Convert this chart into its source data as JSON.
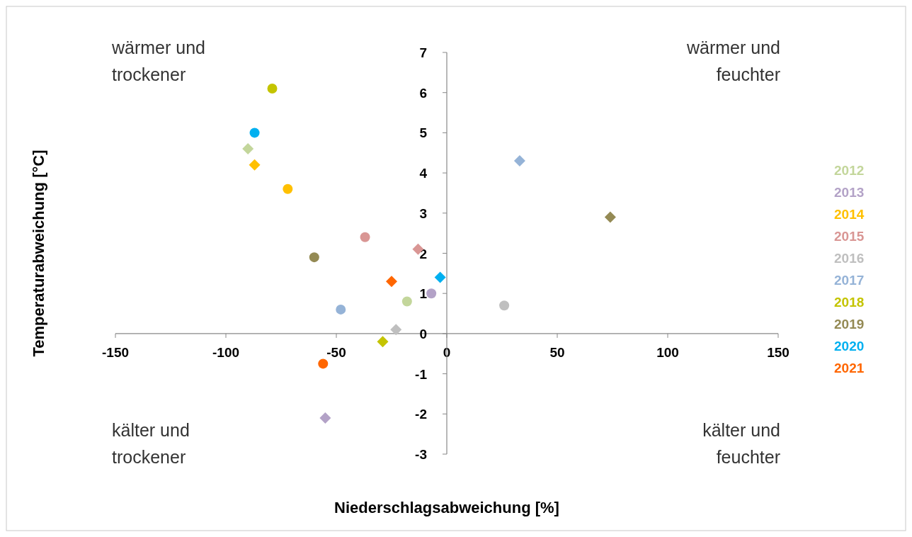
{
  "chart_data": {
    "type": "scatter",
    "xlabel": "Niederschlagsabweichung [%]",
    "ylabel": "Temperaturabweichung [°C]",
    "xlim": [
      -150,
      150
    ],
    "xticks": [
      -150,
      -100,
      -50,
      0,
      50,
      100,
      150
    ],
    "ylim": [
      -3,
      7
    ],
    "yticks": [
      -3,
      -2,
      -1,
      0,
      1,
      2,
      3,
      4,
      5,
      6,
      7
    ],
    "legend": "right",
    "grid": false,
    "annotations": [
      "wärmer und\ntrockener",
      "wärmer und\nfeuchter",
      "kälter und\ntrockener",
      "kälter und\nfeuchter"
    ],
    "series": [
      {
        "name": "2012",
        "color": "#c3d69b",
        "marker": "circle",
        "x": [
          -18
        ],
        "values": [
          0.8
        ]
      },
      {
        "name": "2013",
        "color": "#b3a2c7",
        "marker": "circle",
        "x": [
          -7
        ],
        "values": [
          1.0
        ]
      },
      {
        "name": "2014",
        "color": "#ffc000",
        "marker": "circle",
        "x": [
          -72
        ],
        "values": [
          3.6
        ]
      },
      {
        "name": "2015",
        "color": "#d99694",
        "marker": "circle",
        "x": [
          -37
        ],
        "values": [
          2.4
        ]
      },
      {
        "name": "2016",
        "color": "#bfbfbf",
        "marker": "circle",
        "x": [
          26
        ],
        "values": [
          0.7
        ]
      },
      {
        "name": "2017",
        "color": "#95b3d7",
        "marker": "circle",
        "x": [
          -48
        ],
        "values": [
          0.6
        ]
      },
      {
        "name": "2018",
        "color": "#c4c400",
        "marker": "circle",
        "x": [
          -79
        ],
        "values": [
          6.1
        ]
      },
      {
        "name": "2019",
        "color": "#948a54",
        "marker": "circle",
        "x": [
          -60
        ],
        "values": [
          1.9
        ]
      },
      {
        "name": "2020",
        "color": "#00b0f0",
        "marker": "circle",
        "x": [
          -87
        ],
        "values": [
          5.0
        ]
      },
      {
        "name": "2021",
        "color": "#ff6600",
        "marker": "circle",
        "x": [
          -56
        ],
        "values": [
          -0.75
        ]
      },
      {
        "color": "#c3d69b",
        "marker": "diamond",
        "x": [
          -90
        ],
        "values": [
          4.6
        ]
      },
      {
        "color": "#b3a2c7",
        "marker": "diamond",
        "x": [
          -55
        ],
        "values": [
          -2.1
        ]
      },
      {
        "color": "#ffc000",
        "marker": "diamond",
        "x": [
          -87
        ],
        "values": [
          4.2
        ]
      },
      {
        "color": "#d99694",
        "marker": "diamond",
        "x": [
          -13
        ],
        "values": [
          2.1
        ]
      },
      {
        "color": "#bfbfbf",
        "marker": "diamond",
        "x": [
          -23
        ],
        "values": [
          0.1
        ]
      },
      {
        "color": "#95b3d7",
        "marker": "diamond",
        "x": [
          33
        ],
        "values": [
          4.3
        ]
      },
      {
        "color": "#c4c400",
        "marker": "diamond",
        "x": [
          -29
        ],
        "values": [
          -0.2
        ]
      },
      {
        "color": "#948a54",
        "marker": "diamond",
        "x": [
          74
        ],
        "values": [
          2.9
        ]
      },
      {
        "color": "#00b0f0",
        "marker": "diamond",
        "x": [
          -3
        ],
        "values": [
          1.4
        ]
      },
      {
        "color": "#ff6600",
        "marker": "diamond",
        "x": [
          -25
        ],
        "values": [
          1.3
        ]
      }
    ]
  }
}
